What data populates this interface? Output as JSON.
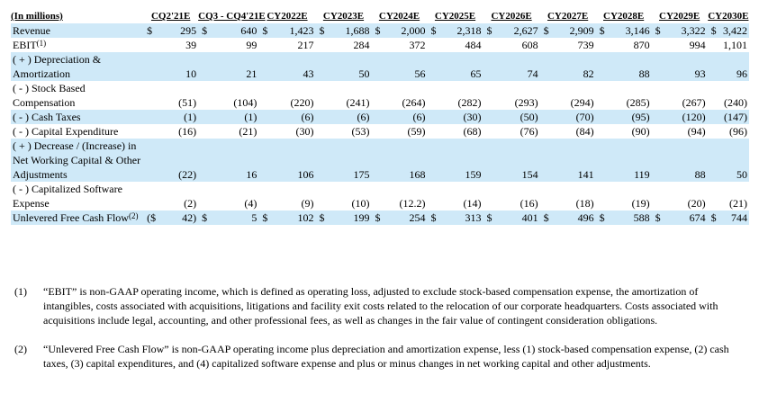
{
  "table": {
    "units_label": "(In millions)",
    "columns": [
      "CQ2'21E",
      "CQ3 - CQ4'21E",
      "CY2022E",
      "CY2023E",
      "CY2024E",
      "CY2025E",
      "CY2026E",
      "CY2027E",
      "CY2028E",
      "CY2029E",
      "CY2030E"
    ],
    "rows": [
      {
        "label": "Revenue",
        "shade": true,
        "cells": [
          [
            "$",
            "295"
          ],
          [
            "$",
            "640"
          ],
          [
            "$",
            "1,423"
          ],
          [
            "$",
            "1,688"
          ],
          [
            "$",
            "2,000"
          ],
          [
            "$",
            "2,318"
          ],
          [
            "$",
            "2,627"
          ],
          [
            "$",
            "2,909"
          ],
          [
            "$",
            "3,146"
          ],
          [
            "$",
            "3,322"
          ],
          [
            "$",
            "3,422"
          ]
        ]
      },
      {
        "label": "EBIT",
        "note": "(1)",
        "shade": false,
        "cells": [
          [
            "",
            "39"
          ],
          [
            "",
            "99"
          ],
          [
            "",
            "217"
          ],
          [
            "",
            "284"
          ],
          [
            "",
            "372"
          ],
          [
            "",
            "484"
          ],
          [
            "",
            "608"
          ],
          [
            "",
            "739"
          ],
          [
            "",
            "870"
          ],
          [
            "",
            "994"
          ],
          [
            "",
            "1,101"
          ]
        ]
      },
      {
        "label": "( + ) Depreciation & Amortization",
        "shade": true,
        "cells": [
          [
            "",
            "10"
          ],
          [
            "",
            "21"
          ],
          [
            "",
            "43"
          ],
          [
            "",
            "50"
          ],
          [
            "",
            "56"
          ],
          [
            "",
            "65"
          ],
          [
            "",
            "74"
          ],
          [
            "",
            "82"
          ],
          [
            "",
            "88"
          ],
          [
            "",
            "93"
          ],
          [
            "",
            "96"
          ]
        ]
      },
      {
        "label": "( - ) Stock Based Compensation",
        "shade": false,
        "cells": [
          [
            "",
            "(51)"
          ],
          [
            "",
            "(104)"
          ],
          [
            "",
            "(220)"
          ],
          [
            "",
            "(241)"
          ],
          [
            "",
            "(264)"
          ],
          [
            "",
            "(282)"
          ],
          [
            "",
            "(293)"
          ],
          [
            "",
            "(294)"
          ],
          [
            "",
            "(285)"
          ],
          [
            "",
            "(267)"
          ],
          [
            "",
            "(240)"
          ]
        ]
      },
      {
        "label": "( - ) Cash Taxes",
        "shade": true,
        "cells": [
          [
            "",
            "(1)"
          ],
          [
            "",
            "(1)"
          ],
          [
            "",
            "(6)"
          ],
          [
            "",
            "(6)"
          ],
          [
            "",
            "(6)"
          ],
          [
            "",
            "(30)"
          ],
          [
            "",
            "(50)"
          ],
          [
            "",
            "(70)"
          ],
          [
            "",
            "(95)"
          ],
          [
            "",
            "(120)"
          ],
          [
            "",
            "(147)"
          ]
        ]
      },
      {
        "label": "( - ) Capital Expenditure",
        "shade": false,
        "cells": [
          [
            "",
            "(16)"
          ],
          [
            "",
            "(21)"
          ],
          [
            "",
            "(30)"
          ],
          [
            "",
            "(53)"
          ],
          [
            "",
            "(59)"
          ],
          [
            "",
            "(68)"
          ],
          [
            "",
            "(76)"
          ],
          [
            "",
            "(84)"
          ],
          [
            "",
            "(90)"
          ],
          [
            "",
            "(94)"
          ],
          [
            "",
            "(96)"
          ]
        ]
      },
      {
        "label": "( + ) Decrease / (Increase) in Net Working Capital & Other Adjustments",
        "shade": true,
        "cells": [
          [
            "",
            "(22)"
          ],
          [
            "",
            "16"
          ],
          [
            "",
            "106"
          ],
          [
            "",
            "175"
          ],
          [
            "",
            "168"
          ],
          [
            "",
            "159"
          ],
          [
            "",
            "154"
          ],
          [
            "",
            "141"
          ],
          [
            "",
            "119"
          ],
          [
            "",
            "88"
          ],
          [
            "",
            "50"
          ]
        ]
      },
      {
        "label": "( - ) Capitalized Software Expense",
        "shade": false,
        "cells": [
          [
            "",
            "(2)"
          ],
          [
            "",
            "(4)"
          ],
          [
            "",
            "(9)"
          ],
          [
            "",
            "(10)"
          ],
          [
            "",
            "(12.2)"
          ],
          [
            "",
            "(14)"
          ],
          [
            "",
            "(16)"
          ],
          [
            "",
            "(18)"
          ],
          [
            "",
            "(19)"
          ],
          [
            "",
            "(20)"
          ],
          [
            "",
            "(21)"
          ]
        ]
      },
      {
        "label": "Unlevered Free Cash Flow",
        "note": "(2)",
        "shade": true,
        "cells": [
          [
            "($",
            "42)"
          ],
          [
            "$",
            "5"
          ],
          [
            "$",
            "102"
          ],
          [
            "$",
            "199"
          ],
          [
            "$",
            "254"
          ],
          [
            "$",
            "313"
          ],
          [
            "$",
            "401"
          ],
          [
            "$",
            "496"
          ],
          [
            "$",
            "588"
          ],
          [
            "$",
            "674"
          ],
          [
            "$",
            "744"
          ]
        ]
      }
    ]
  },
  "footnotes": [
    {
      "num": "(1)",
      "text": "“EBIT” is non-GAAP operating income, which is defined as operating loss, adjusted to exclude stock-based compensation expense, the amortization of intangibles, costs associated with acquisitions, litigations and facility exit costs related to the relocation of our corporate headquarters. Costs associated with acquisitions include legal, accounting, and other professional fees, as well as changes in the fair value of contingent consideration obligations."
    },
    {
      "num": "(2)",
      "text": "“Unlevered Free Cash Flow” is non-GAAP operating income plus depreciation and amortization expense, less (1) stock-based compensation expense, (2) cash taxes, (3) capital expenditures, and (4) capitalized software expense and plus or minus changes in net working capital and other adjustments."
    }
  ]
}
